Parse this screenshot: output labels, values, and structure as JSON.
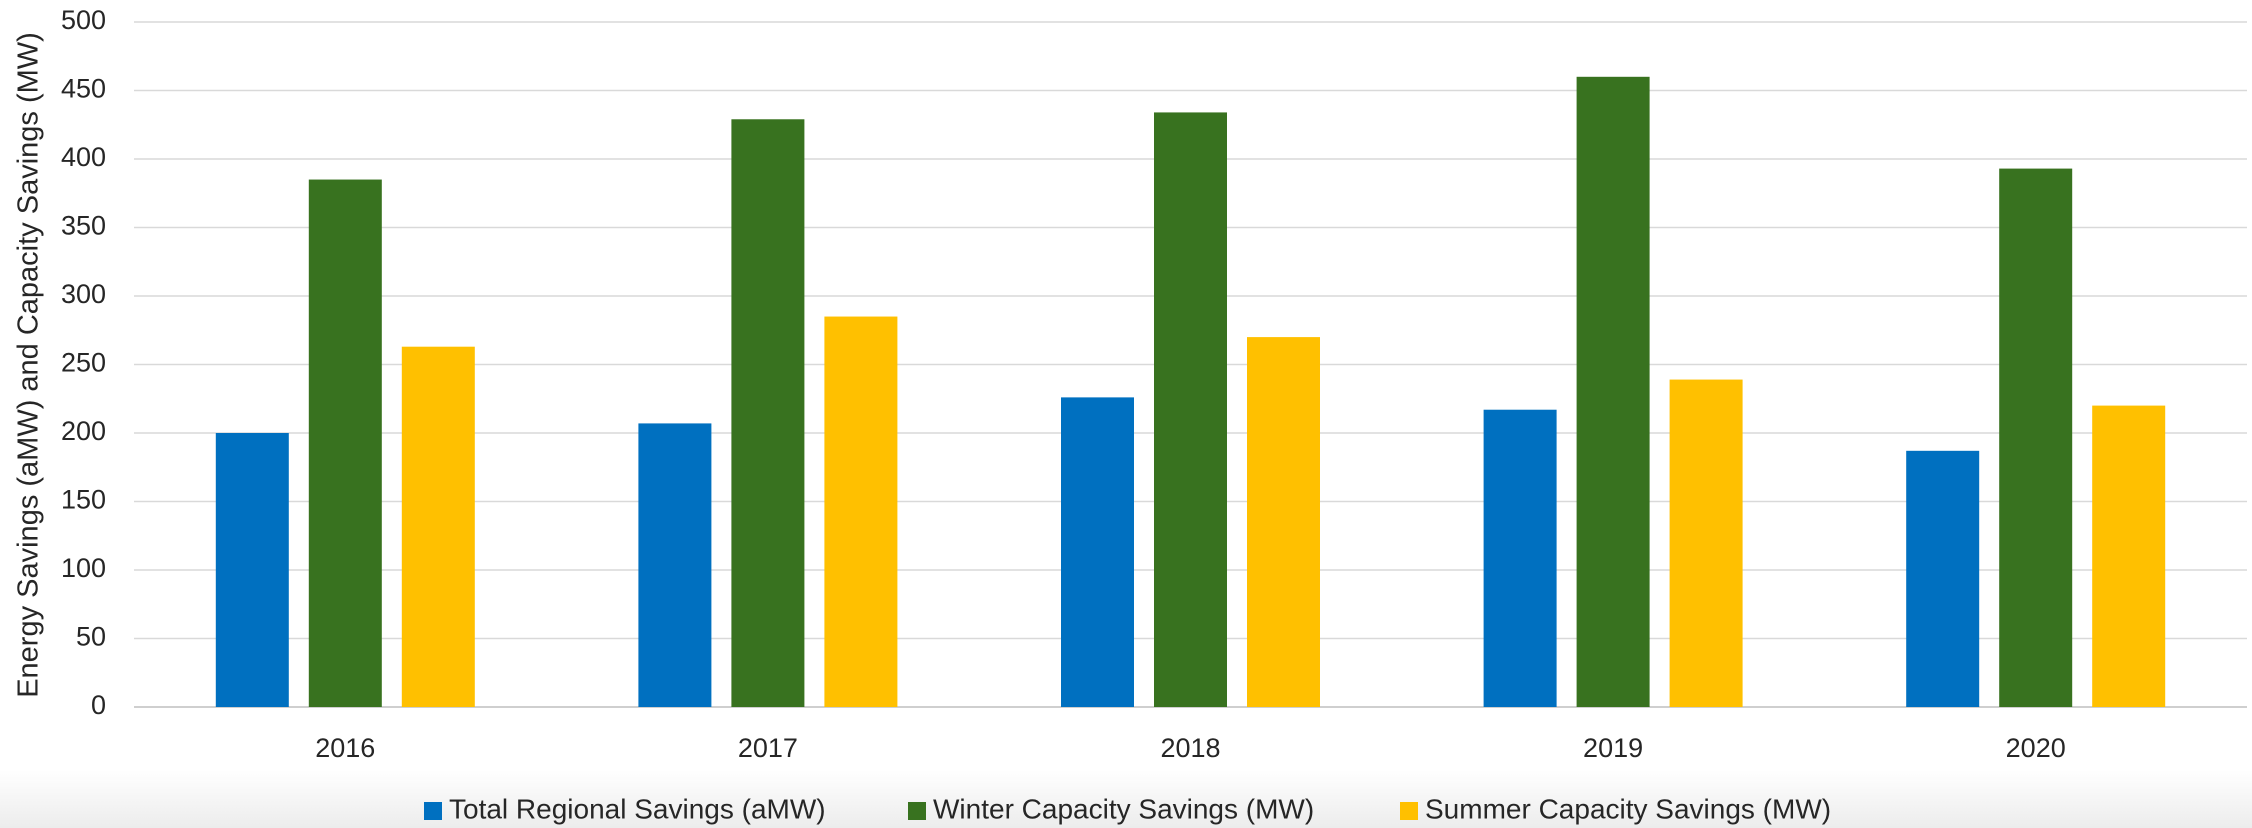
{
  "chart_data": {
    "type": "bar",
    "y_label": "Energy Savings (aMW) and Capacity Savings (MW)",
    "categories": [
      "2016",
      "2017",
      "2018",
      "2019",
      "2020"
    ],
    "series": [
      {
        "name": "Total Regional Savings (aMW)",
        "color": "#0070c0",
        "values": [
          200,
          207,
          226,
          217,
          187
        ]
      },
      {
        "name": "Winter Capacity Savings (MW)",
        "color": "#38721f",
        "values": [
          385,
          429,
          434,
          460,
          393
        ]
      },
      {
        "name": "Summer Capacity Savings (MW)",
        "color": "#ffc000",
        "values": [
          263,
          285,
          270,
          239,
          220
        ]
      }
    ],
    "ylim": [
      0,
      500
    ],
    "yticks": [
      0,
      50,
      100,
      150,
      200,
      250,
      300,
      350,
      400,
      450,
      500
    ],
    "grid": true,
    "legend": "bottom"
  }
}
